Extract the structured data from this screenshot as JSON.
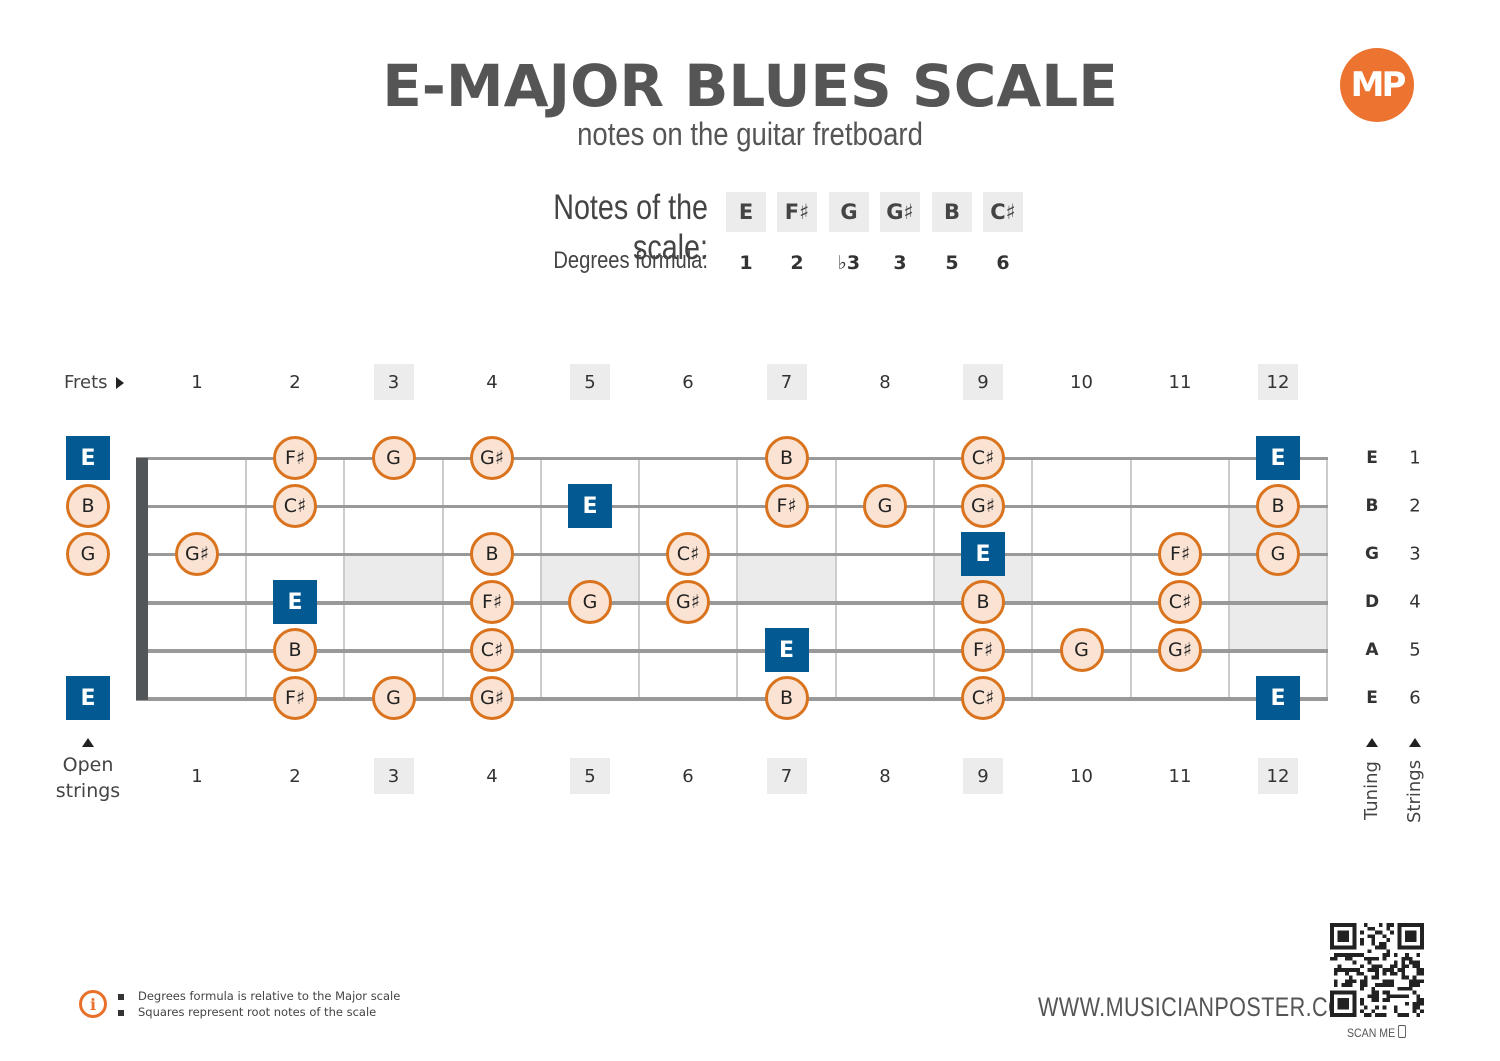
{
  "header": {
    "title": "E-MAJOR BLUES SCALE",
    "subtitle": "notes on the guitar fretboard",
    "logo_text": "MP",
    "logo_color": "#ec7430"
  },
  "scale": {
    "notes_label": "Notes of the scale:",
    "degrees_label": "Degrees formula:",
    "notes": [
      "E",
      "F♯",
      "G",
      "G♯",
      "B",
      "C♯"
    ],
    "degrees": [
      "1",
      "2",
      "♭3",
      "3",
      "5",
      "6"
    ]
  },
  "fretboard": {
    "frets_label": "Frets",
    "open_strings_label_1": "Open",
    "open_strings_label_2": "strings",
    "tuning_label": "Tuning",
    "strings_label": "Strings",
    "fret_numbers": [
      "1",
      "2",
      "3",
      "4",
      "5",
      "6",
      "7",
      "8",
      "9",
      "10",
      "11",
      "12"
    ],
    "highlighted_frets": [
      3,
      5,
      7,
      9,
      12
    ],
    "tuning": [
      "E",
      "B",
      "G",
      "D",
      "A",
      "E"
    ],
    "string_numbers": [
      "1",
      "2",
      "3",
      "4",
      "5",
      "6"
    ],
    "colors": {
      "root": "#035a92",
      "note_fill": "#fbe3d3",
      "note_border": "#d9731e"
    },
    "open_notes": [
      {
        "string": 1,
        "note": "E",
        "root": true
      },
      {
        "string": 2,
        "note": "B",
        "root": false
      },
      {
        "string": 3,
        "note": "G",
        "root": false
      },
      {
        "string": 6,
        "note": "E",
        "root": true
      }
    ],
    "positions": [
      {
        "string": 1,
        "fret": 2,
        "note": "F♯",
        "root": false
      },
      {
        "string": 1,
        "fret": 3,
        "note": "G",
        "root": false
      },
      {
        "string": 1,
        "fret": 4,
        "note": "G♯",
        "root": false
      },
      {
        "string": 1,
        "fret": 7,
        "note": "B",
        "root": false
      },
      {
        "string": 1,
        "fret": 9,
        "note": "C♯",
        "root": false
      },
      {
        "string": 1,
        "fret": 12,
        "note": "E",
        "root": true
      },
      {
        "string": 2,
        "fret": 2,
        "note": "C♯",
        "root": false
      },
      {
        "string": 2,
        "fret": 5,
        "note": "E",
        "root": true
      },
      {
        "string": 2,
        "fret": 7,
        "note": "F♯",
        "root": false
      },
      {
        "string": 2,
        "fret": 8,
        "note": "G",
        "root": false
      },
      {
        "string": 2,
        "fret": 9,
        "note": "G♯",
        "root": false
      },
      {
        "string": 2,
        "fret": 12,
        "note": "B",
        "root": false
      },
      {
        "string": 3,
        "fret": 1,
        "note": "G♯",
        "root": false
      },
      {
        "string": 3,
        "fret": 4,
        "note": "B",
        "root": false
      },
      {
        "string": 3,
        "fret": 6,
        "note": "C♯",
        "root": false
      },
      {
        "string": 3,
        "fret": 9,
        "note": "E",
        "root": true
      },
      {
        "string": 3,
        "fret": 11,
        "note": "F♯",
        "root": false
      },
      {
        "string": 3,
        "fret": 12,
        "note": "G",
        "root": false
      },
      {
        "string": 4,
        "fret": 2,
        "note": "E",
        "root": true
      },
      {
        "string": 4,
        "fret": 4,
        "note": "F♯",
        "root": false
      },
      {
        "string": 4,
        "fret": 5,
        "note": "G",
        "root": false
      },
      {
        "string": 4,
        "fret": 6,
        "note": "G♯",
        "root": false
      },
      {
        "string": 4,
        "fret": 9,
        "note": "B",
        "root": false
      },
      {
        "string": 4,
        "fret": 11,
        "note": "C♯",
        "root": false
      },
      {
        "string": 5,
        "fret": 2,
        "note": "B",
        "root": false
      },
      {
        "string": 5,
        "fret": 4,
        "note": "C♯",
        "root": false
      },
      {
        "string": 5,
        "fret": 7,
        "note": "E",
        "root": true
      },
      {
        "string": 5,
        "fret": 9,
        "note": "F♯",
        "root": false
      },
      {
        "string": 5,
        "fret": 10,
        "note": "G",
        "root": false
      },
      {
        "string": 5,
        "fret": 11,
        "note": "G♯",
        "root": false
      },
      {
        "string": 6,
        "fret": 2,
        "note": "F♯",
        "root": false
      },
      {
        "string": 6,
        "fret": 3,
        "note": "G",
        "root": false
      },
      {
        "string": 6,
        "fret": 4,
        "note": "G♯",
        "root": false
      },
      {
        "string": 6,
        "fret": 7,
        "note": "B",
        "root": false
      },
      {
        "string": 6,
        "fret": 9,
        "note": "C♯",
        "root": false
      },
      {
        "string": 6,
        "fret": 12,
        "note": "E",
        "root": true
      }
    ]
  },
  "footer": {
    "notes": [
      "Degrees formula is relative to the Major scale",
      "Squares represent root notes of the scale"
    ],
    "website": "WWW.MUSICIANPOSTER.COM",
    "scan_me": "SCAN ME"
  }
}
